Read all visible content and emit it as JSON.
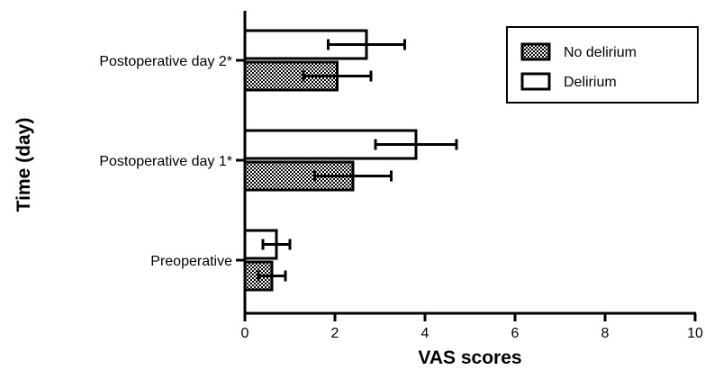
{
  "chart_data": {
    "type": "bar",
    "orientation": "horizontal",
    "title": "",
    "xlabel": "VAS scores",
    "ylabel": "Time (day)",
    "xlim": [
      0,
      10
    ],
    "x_ticks": [
      "0",
      "2",
      "4",
      "6",
      "8",
      "10"
    ],
    "categories": [
      "Preoperative",
      "Postoperative day 1*",
      "Postoperative day 2*"
    ],
    "series": [
      {
        "name": "No delirium",
        "pattern": "checkered",
        "values": [
          0.6,
          2.4,
          2.05
        ],
        "errors": [
          0.3,
          0.85,
          0.75
        ]
      },
      {
        "name": "Delirium",
        "pattern": "hollow",
        "values": [
          0.7,
          3.8,
          2.7
        ],
        "errors": [
          0.3,
          0.9,
          0.85
        ]
      }
    ],
    "legend_position": "top-right",
    "grid": false,
    "colors": {
      "axis": "#000000",
      "fill_dark": "#000000",
      "fill_light": "#ffffff"
    }
  }
}
